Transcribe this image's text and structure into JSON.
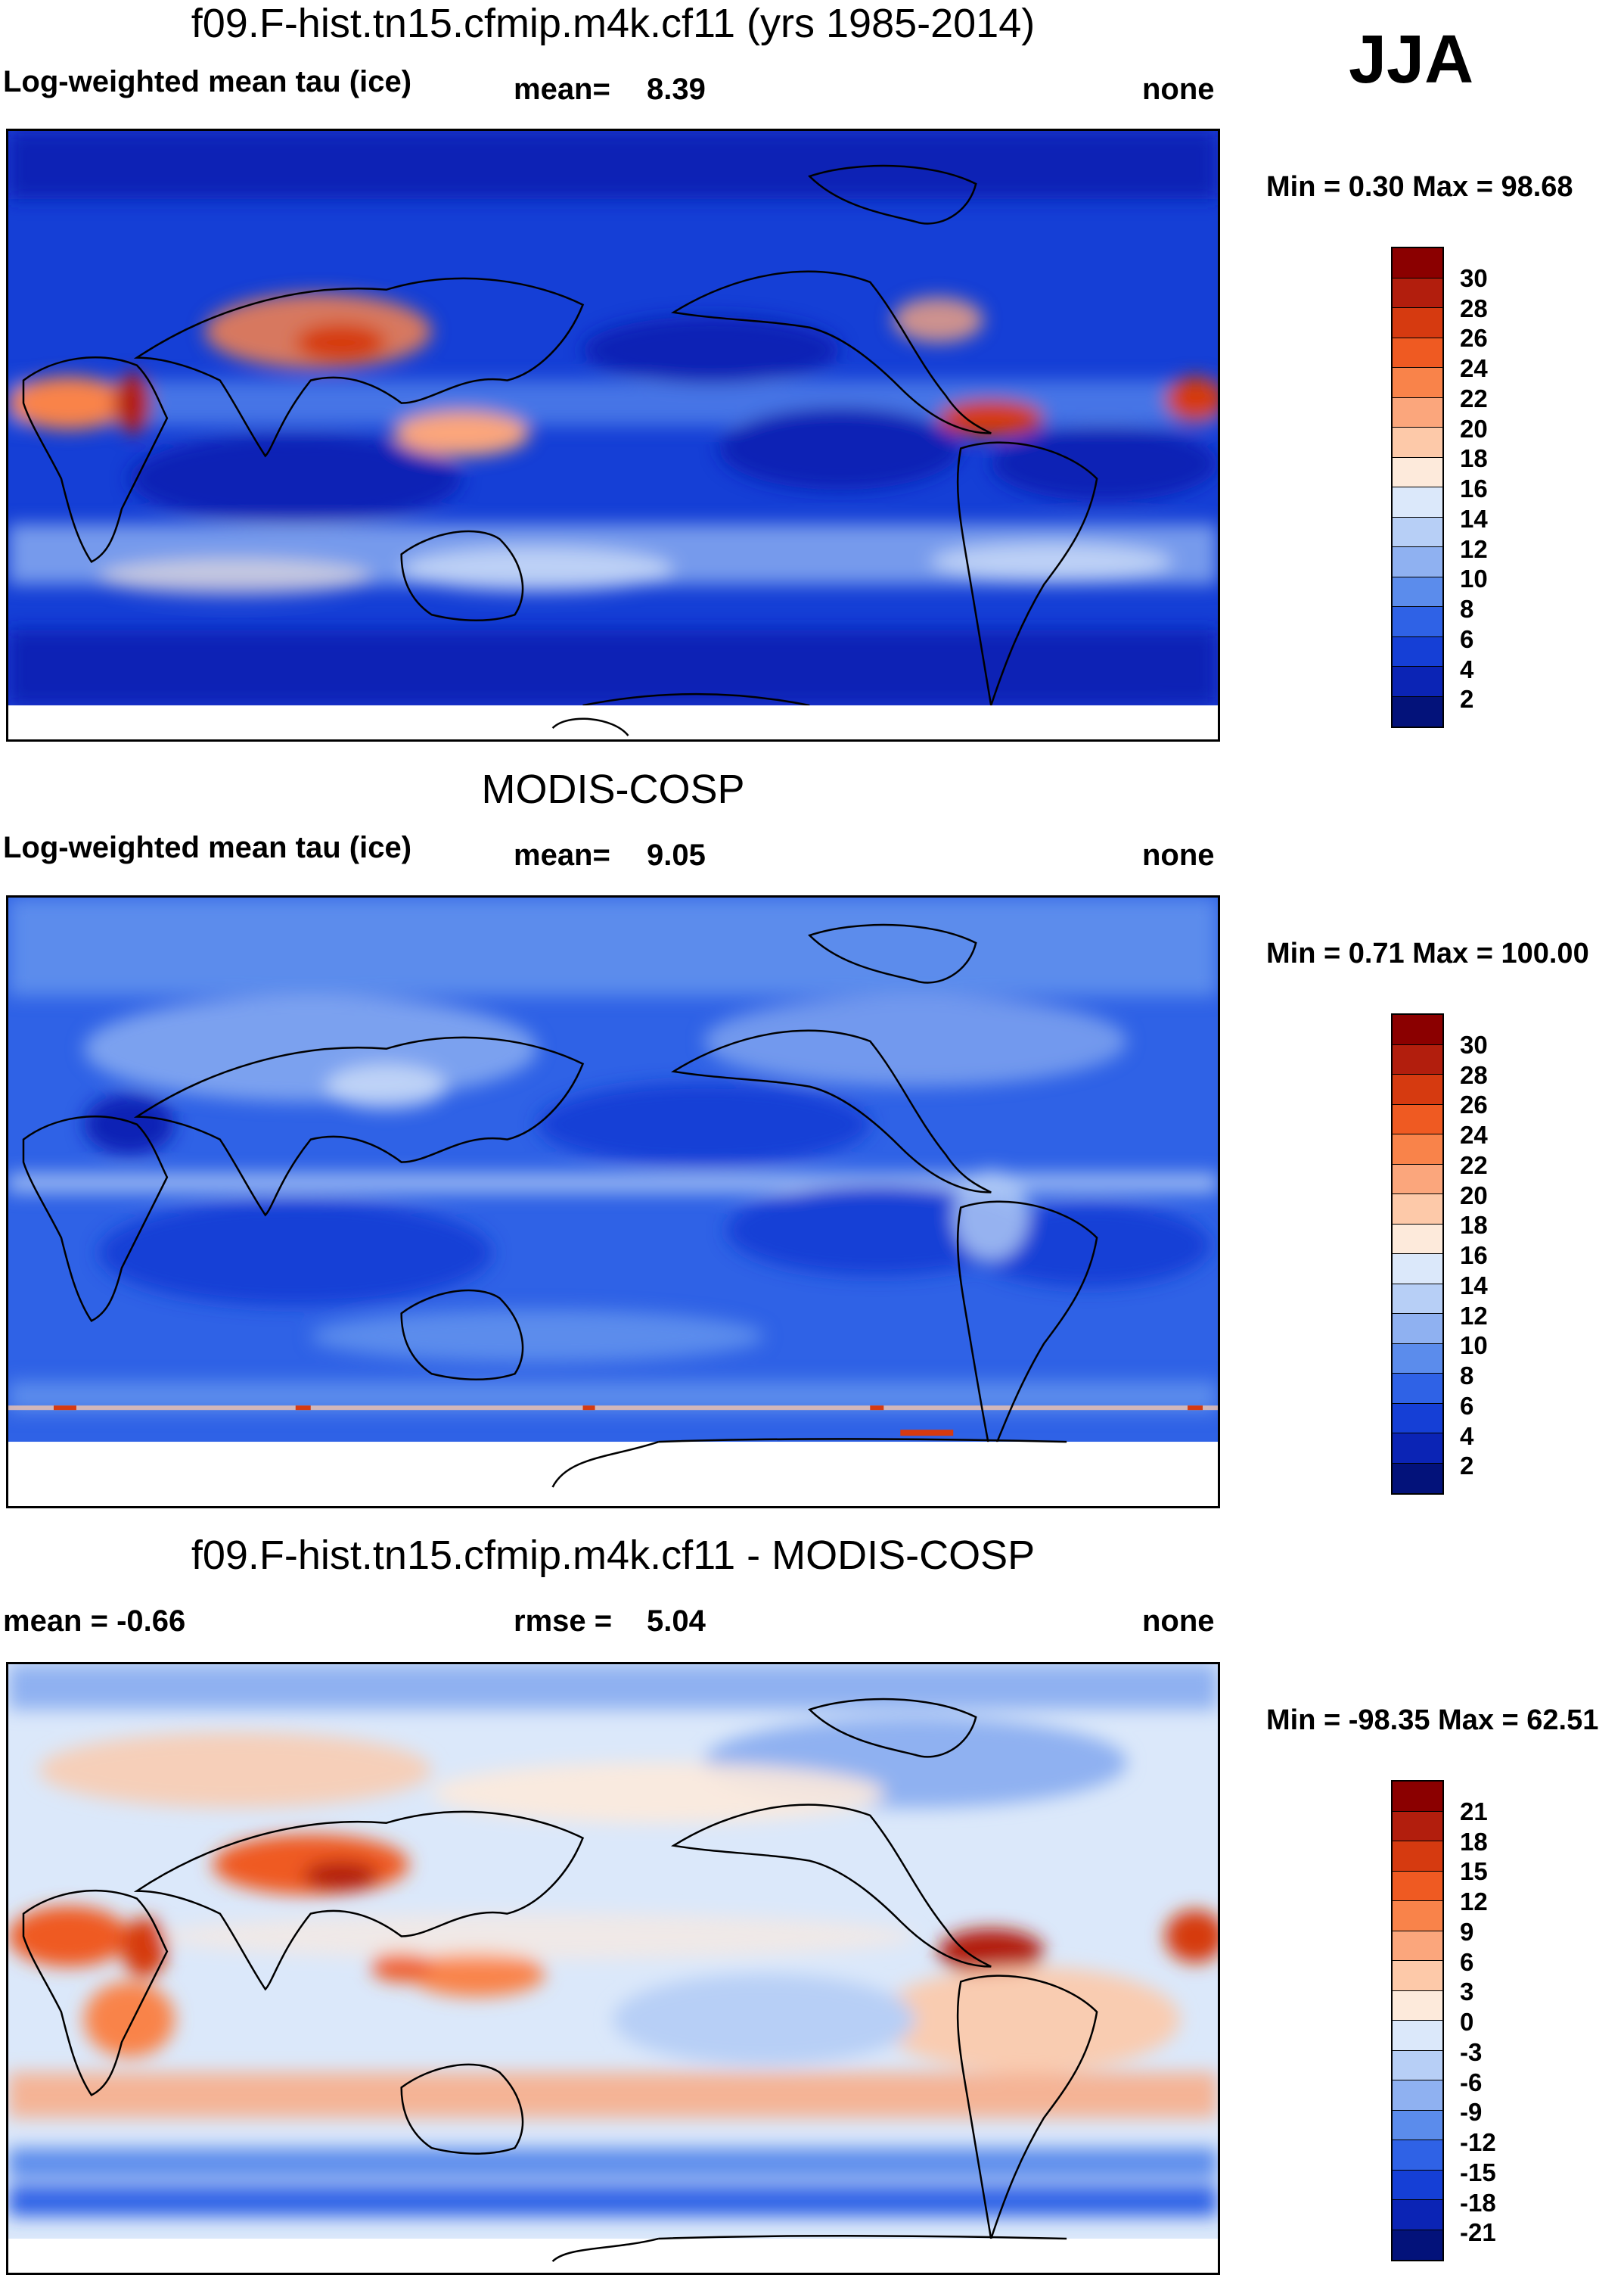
{
  "season": "JJA",
  "panels": [
    {
      "title": "f09.F-hist.tn15.cfmip.m4k.cf11 (yrs 1985-2014)",
      "left_label": "Log-weighted mean tau (ice)",
      "stat_label": "mean=",
      "stat_value": "8.39",
      "right_label": "none",
      "minmax": "Min =   0.30 Max =  98.68",
      "colorbar": {
        "colors": [
          "#8b0000",
          "#b21e0d",
          "#d63a10",
          "#ef5a22",
          "#f9834a",
          "#fba67c",
          "#fdc9a9",
          "#fdeadb",
          "#dbe8fa",
          "#b7cff6",
          "#8fb1f1",
          "#5b8cec",
          "#2f62e6",
          "#153fd6",
          "#0b24b5",
          "#03127a"
        ],
        "ticks": [
          "30",
          "28",
          "26",
          "24",
          "22",
          "20",
          "18",
          "16",
          "14",
          "12",
          "10",
          "8",
          "6",
          "4",
          "2"
        ]
      }
    },
    {
      "title": "MODIS-COSP",
      "left_label": "Log-weighted mean tau (ice)",
      "stat_label": "mean=",
      "stat_value": "9.05",
      "right_label": "none",
      "minmax": "Min =   0.71 Max = 100.00",
      "colorbar": {
        "colors": [
          "#8b0000",
          "#b21e0d",
          "#d63a10",
          "#ef5a22",
          "#f9834a",
          "#fba67c",
          "#fdc9a9",
          "#fdeadb",
          "#dbe8fa",
          "#b7cff6",
          "#8fb1f1",
          "#5b8cec",
          "#2f62e6",
          "#153fd6",
          "#0b24b5",
          "#03127a"
        ],
        "ticks": [
          "30",
          "28",
          "26",
          "24",
          "22",
          "20",
          "18",
          "16",
          "14",
          "12",
          "10",
          "8",
          "6",
          "4",
          "2"
        ]
      }
    },
    {
      "title": "f09.F-hist.tn15.cfmip.m4k.cf11 - MODIS-COSP",
      "left_label": "mean =  -0.66",
      "stat_label": "rmse =",
      "stat_value": "5.04",
      "right_label": "none",
      "minmax": "Min = -98.35 Max =  62.51",
      "colorbar": {
        "colors": [
          "#8b0000",
          "#b21e0d",
          "#d63a10",
          "#ef5a22",
          "#f9834a",
          "#fba67c",
          "#fdc9a9",
          "#fdeadb",
          "#dbe8fa",
          "#b7cff6",
          "#8fb1f1",
          "#5b8cec",
          "#2f62e6",
          "#153fd6",
          "#0b24b5",
          "#03127a"
        ],
        "ticks": [
          "21",
          "18",
          "15",
          "12",
          "9",
          "6",
          "3",
          "0",
          "-3",
          "-6",
          "-9",
          "-12",
          "-15",
          "-18",
          "-21"
        ]
      }
    }
  ]
}
